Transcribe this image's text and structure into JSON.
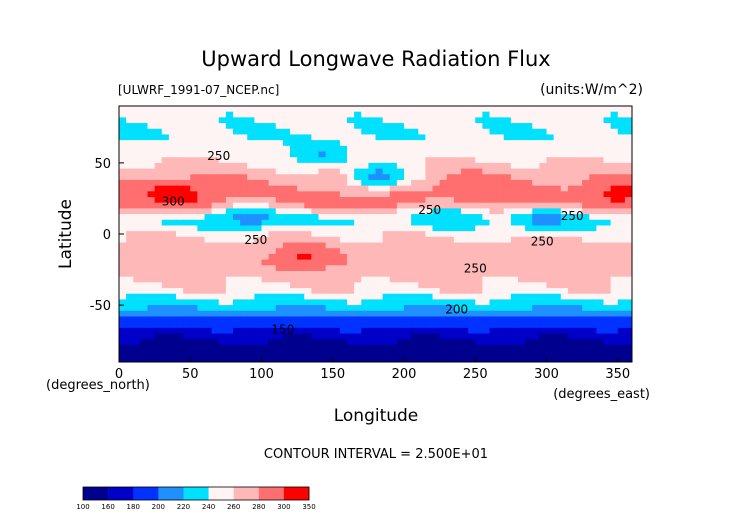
{
  "chart_data": {
    "type": "heatmap",
    "title": "Upward Longwave Radiation Flux",
    "source_label": "[ULWRF_1991-07_NCEP.nc]",
    "units_label": "(units:W/m^2)",
    "xlabel": "Longitude",
    "ylabel": "Latitude",
    "x_units": "(degrees_east)",
    "y_units": "(degrees_north)",
    "xlim": [
      0,
      360
    ],
    "ylim": [
      -90,
      90
    ],
    "xticks": [
      "0",
      "50",
      "100",
      "150",
      "200",
      "250",
      "300",
      "350"
    ],
    "yticks": [
      "50",
      "0",
      "-50"
    ],
    "contour_interval_label": "CONTOUR INTERVAL = 2.500E+01",
    "contour_labels": [
      {
        "text": "250",
        "x": 70,
        "y": 52
      },
      {
        "text": "300",
        "x": 38,
        "y": 20
      },
      {
        "text": "250",
        "x": 218,
        "y": 14
      },
      {
        "text": "250",
        "x": 318,
        "y": 10
      },
      {
        "text": "250",
        "x": 297,
        "y": -8
      },
      {
        "text": "250",
        "x": 96,
        "y": -7
      },
      {
        "text": "250",
        "x": 250,
        "y": -27
      },
      {
        "text": "200",
        "x": 237,
        "y": -56
      },
      {
        "text": "150",
        "x": 115,
        "y": -70
      }
    ],
    "colorbar": {
      "ticks": [
        "100",
        "160",
        "180",
        "200",
        "220",
        "240",
        "260",
        "280",
        "300",
        "350"
      ],
      "colors": [
        "#00008f",
        "#0000c8",
        "#0033ff",
        "#1e90ff",
        "#00e0ff",
        "#fff4f4",
        "#ffb8b8",
        "#ff6f6f",
        "#ff0000"
      ]
    },
    "band_profile": {
      "lat": [
        90,
        80,
        70,
        60,
        50,
        40,
        30,
        20,
        10,
        0,
        -10,
        -20,
        -30,
        -40,
        -50,
        -60,
        -70,
        -80,
        -90
      ],
      "value": [
        252,
        246,
        240,
        248,
        262,
        276,
        288,
        282,
        236,
        258,
        270,
        276,
        268,
        255,
        228,
        198,
        170,
        150,
        148
      ]
    },
    "cold_regions": [
      {
        "lon": 92,
        "lat": 12,
        "value": 205
      },
      {
        "lon": 182,
        "lat": 40,
        "value": 200
      },
      {
        "lon": 300,
        "lat": 10,
        "value": 212
      },
      {
        "lon": 140,
        "lat": 55,
        "value": 215
      },
      {
        "lon": 230,
        "lat": 12,
        "value": 222
      }
    ],
    "warm_regions": [
      {
        "lon": 40,
        "lat": 28,
        "value": 318
      },
      {
        "lon": 350,
        "lat": 27,
        "value": 306
      },
      {
        "lon": 130,
        "lat": -15,
        "value": 305
      },
      {
        "lon": 245,
        "lat": 32,
        "value": 292
      }
    ]
  }
}
